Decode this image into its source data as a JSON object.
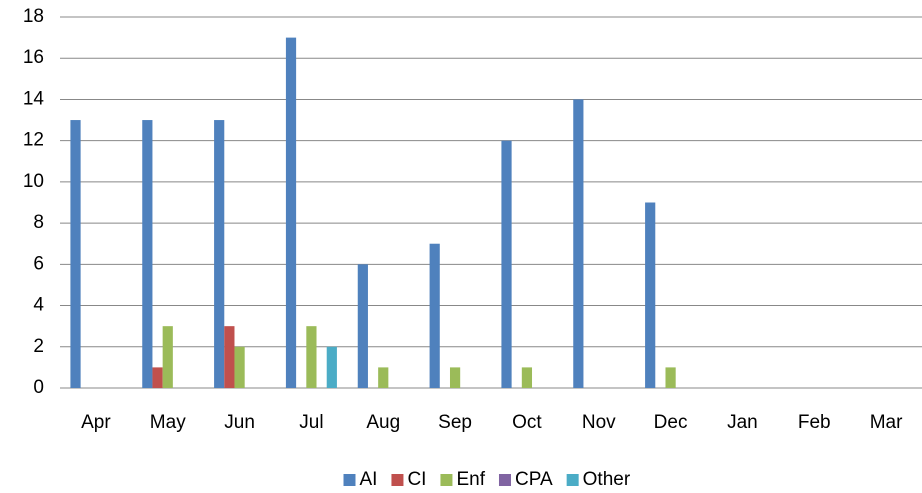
{
  "chart_data": {
    "type": "bar",
    "categories": [
      "Apr",
      "May",
      "Jun",
      "Jul",
      "Aug",
      "Sep",
      "Oct",
      "Nov",
      "Dec",
      "Jan",
      "Feb",
      "Mar"
    ],
    "series": [
      {
        "name": "AI",
        "color": "#4f81bd",
        "values": [
          13,
          13,
          13,
          17,
          6,
          7,
          12,
          14,
          9,
          0,
          0,
          0
        ]
      },
      {
        "name": "CI",
        "color": "#c0504d",
        "values": [
          0,
          1,
          3,
          0,
          0,
          0,
          0,
          0,
          0,
          0,
          0,
          0
        ]
      },
      {
        "name": "Enf",
        "color": "#9bbb59",
        "values": [
          0,
          3,
          2,
          3,
          1,
          1,
          1,
          0,
          1,
          0,
          0,
          0
        ]
      },
      {
        "name": "CPA",
        "color": "#8064a2",
        "values": [
          0,
          0,
          0,
          0,
          0,
          0,
          0,
          0,
          0,
          0,
          0,
          0
        ]
      },
      {
        "name": "Other",
        "color": "#4bacc6",
        "values": [
          0,
          0,
          0,
          2,
          0,
          0,
          0,
          0,
          0,
          0,
          0,
          0
        ]
      }
    ],
    "ylim": [
      0,
      18
    ],
    "yticks": [
      0,
      2,
      4,
      6,
      8,
      10,
      12,
      14,
      16,
      18
    ],
    "grid": true,
    "legend": "bottom"
  }
}
